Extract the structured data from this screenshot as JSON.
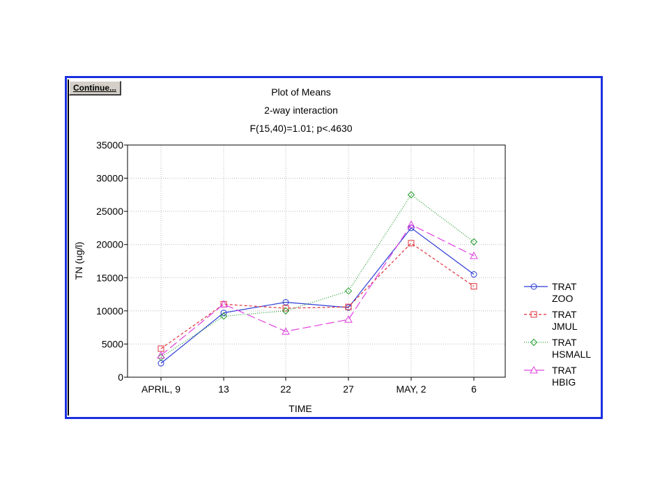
{
  "button": {
    "continue_label": "Continue..."
  },
  "colors": {
    "frame_border": "#1a2fe0"
  },
  "chart_data": {
    "type": "line",
    "title": [
      "Plot of Means",
      "2-way interaction",
      "F(15,40)=1.01; p<.4630"
    ],
    "xlabel": "TIME",
    "ylabel": "TN (ug/l)",
    "categories": [
      "APRIL, 9",
      "13",
      "22",
      "27",
      "MAY, 2",
      "6"
    ],
    "ylim": [
      0,
      35000
    ],
    "yticks": [
      0,
      5000,
      10000,
      15000,
      20000,
      25000,
      30000,
      35000
    ],
    "grid": true,
    "legend_position": "right",
    "series": [
      {
        "name": [
          "TRAT",
          "ZOO"
        ],
        "color": "#2b3bd4",
        "marker": "circle",
        "dash": "solid",
        "values": [
          2100,
          9700,
          11300,
          10500,
          22500,
          15500
        ]
      },
      {
        "name": [
          "TRAT",
          "JMUL"
        ],
        "color": "#e0303a",
        "marker": "square",
        "dash": "short-dash",
        "values": [
          4300,
          11000,
          10400,
          10600,
          20200,
          13700
        ]
      },
      {
        "name": [
          "TRAT",
          "HSMALL"
        ],
        "color": "#1f9a2a",
        "marker": "diamond",
        "dash": "dotted",
        "values": [
          3000,
          9200,
          10000,
          13000,
          27500,
          20400
        ]
      },
      {
        "name": [
          "TRAT",
          "HBIG"
        ],
        "color": "#e040e0",
        "marker": "triangle",
        "dash": "long-dash",
        "values": [
          3300,
          11000,
          6900,
          8700,
          23000,
          18300
        ]
      }
    ]
  }
}
